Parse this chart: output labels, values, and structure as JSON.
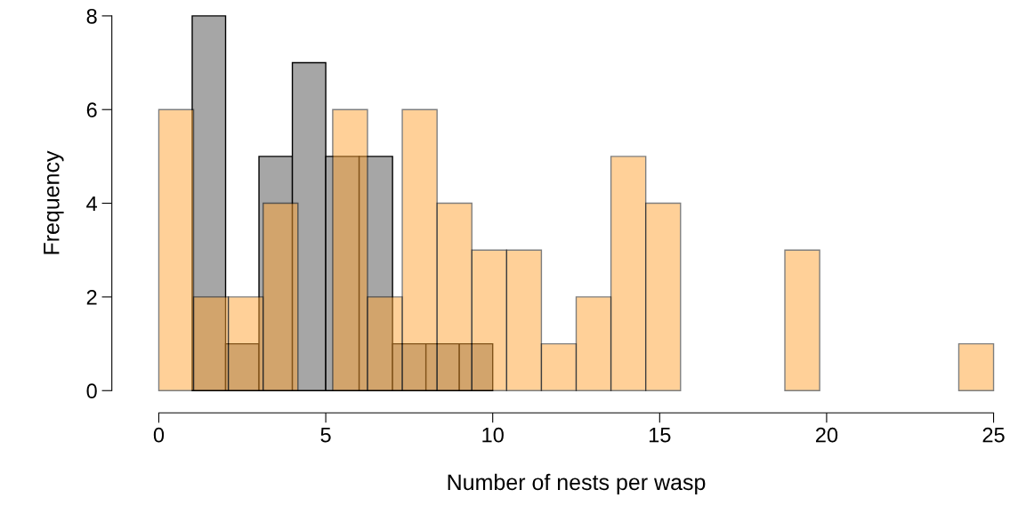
{
  "chart_data": {
    "type": "histogram",
    "xlabel": "Number of nests per wasp",
    "ylabel": "Frequency",
    "series": [
      {
        "color": "#a6a6a6",
        "bins": [
          1,
          2,
          3,
          4,
          5,
          6,
          7,
          8,
          9,
          10
        ],
        "values": [
          8,
          1,
          5,
          7,
          5,
          5,
          1,
          1,
          1
        ]
      },
      {
        "color": "#ffd199",
        "values": [
          6,
          2,
          2,
          4,
          0,
          6,
          2,
          6,
          4,
          3,
          3,
          1,
          2,
          5,
          4,
          0,
          0,
          0,
          3,
          0,
          0,
          0,
          0,
          1
        ]
      }
    ],
    "bins": [
      0,
      1.0417,
      2.0833,
      3.125,
      4.1667,
      5.2083,
      6.25,
      7.2917,
      8.3333,
      9.375,
      10.4167,
      11.4583,
      12.5,
      13.5417,
      14.5833,
      15.625,
      16.6667,
      17.7083,
      18.75,
      19.7917,
      20.8333,
      21.875,
      22.9167,
      23.9583,
      25
    ],
    "xlim": [
      0,
      25
    ],
    "xticks": [
      0,
      5,
      10,
      15,
      20,
      25
    ],
    "ylim": [
      0,
      8
    ],
    "yticks": [
      0,
      2,
      4,
      6,
      8
    ],
    "grid": false,
    "legend": false
  }
}
